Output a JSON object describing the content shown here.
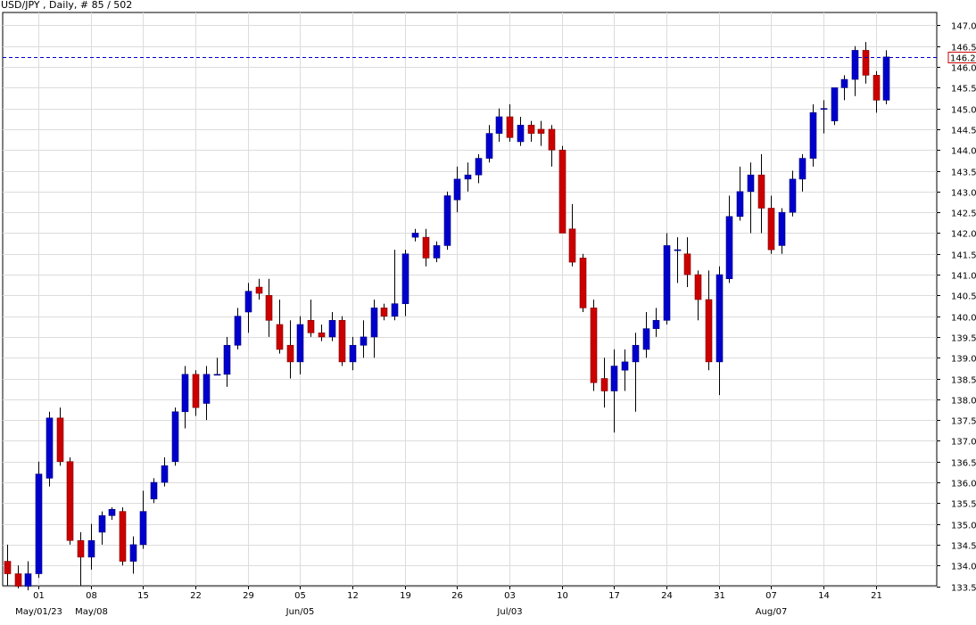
{
  "chart_data": {
    "type": "candlestick",
    "title": "USD/JPY , Daily, # 85 / 502",
    "symbol": "USD/JPY",
    "timeframe": "Daily",
    "current_price": 146.24,
    "current_price_label": "146.24",
    "ylim": [
      133.5,
      147.3
    ],
    "y_ticks": [
      "133.50",
      "134.00",
      "134.50",
      "135.00",
      "135.50",
      "136.00",
      "136.50",
      "137.00",
      "137.50",
      "138.00",
      "138.50",
      "139.00",
      "139.50",
      "140.00",
      "140.50",
      "141.00",
      "141.50",
      "142.00",
      "142.50",
      "143.00",
      "143.50",
      "144.00",
      "144.50",
      "145.00",
      "145.50",
      "146.00",
      "146.50",
      "147.00"
    ],
    "x_ticks": [
      {
        "index": 3,
        "label": "01"
      },
      {
        "index": 8,
        "label": "08"
      },
      {
        "index": 13,
        "label": "15"
      },
      {
        "index": 18,
        "label": "22"
      },
      {
        "index": 23,
        "label": "29"
      },
      {
        "index": 28,
        "label": "05"
      },
      {
        "index": 33,
        "label": "12"
      },
      {
        "index": 38,
        "label": "19"
      },
      {
        "index": 43,
        "label": "26"
      },
      {
        "index": 48,
        "label": "03"
      },
      {
        "index": 53,
        "label": "10"
      },
      {
        "index": 58,
        "label": "17"
      },
      {
        "index": 63,
        "label": "24"
      },
      {
        "index": 68,
        "label": "31"
      },
      {
        "index": 73,
        "label": "07"
      },
      {
        "index": 78,
        "label": "14"
      },
      {
        "index": 83,
        "label": "21"
      }
    ],
    "period_labels": [
      {
        "index": 3,
        "label": "May/01/23"
      },
      {
        "index": 8,
        "label": "May/08"
      },
      {
        "index": 28,
        "label": "Jun/05"
      },
      {
        "index": 48,
        "label": "Jul/03"
      },
      {
        "index": 73,
        "label": "Aug/07"
      }
    ],
    "grid": true,
    "up_color": "#0000cc",
    "down_color": "#cc0000",
    "price_line_color": "#0000cc",
    "price_label_border": "#cc0000",
    "candles": [
      {
        "o": 134.1,
        "h": 134.5,
        "l": 133.5,
        "c": 133.8
      },
      {
        "o": 133.8,
        "h": 134.0,
        "l": 133.45,
        "c": 133.5
      },
      {
        "o": 133.5,
        "h": 134.1,
        "l": 133.4,
        "c": 133.8
      },
      {
        "o": 133.8,
        "h": 136.5,
        "l": 133.7,
        "c": 136.2
      },
      {
        "o": 136.1,
        "h": 137.7,
        "l": 135.9,
        "c": 137.55
      },
      {
        "o": 137.55,
        "h": 137.8,
        "l": 136.4,
        "c": 136.5
      },
      {
        "o": 136.5,
        "h": 136.6,
        "l": 134.5,
        "c": 134.6
      },
      {
        "o": 134.6,
        "h": 134.8,
        "l": 133.5,
        "c": 134.2
      },
      {
        "o": 134.2,
        "h": 135.0,
        "l": 133.9,
        "c": 134.6
      },
      {
        "o": 134.8,
        "h": 135.3,
        "l": 134.5,
        "c": 135.2
      },
      {
        "o": 135.2,
        "h": 135.4,
        "l": 135.1,
        "c": 135.35
      },
      {
        "o": 135.3,
        "h": 135.4,
        "l": 134.0,
        "c": 134.1
      },
      {
        "o": 134.1,
        "h": 134.7,
        "l": 133.8,
        "c": 134.5
      },
      {
        "o": 134.5,
        "h": 135.8,
        "l": 134.4,
        "c": 135.3
      },
      {
        "o": 135.6,
        "h": 136.1,
        "l": 135.5,
        "c": 136.0
      },
      {
        "o": 136.0,
        "h": 136.6,
        "l": 135.9,
        "c": 136.4
      },
      {
        "o": 136.5,
        "h": 137.8,
        "l": 136.4,
        "c": 137.7
      },
      {
        "o": 137.7,
        "h": 138.8,
        "l": 137.3,
        "c": 138.6
      },
      {
        "o": 138.6,
        "h": 138.7,
        "l": 137.6,
        "c": 137.8
      },
      {
        "o": 137.9,
        "h": 138.8,
        "l": 137.5,
        "c": 138.6
      },
      {
        "o": 138.6,
        "h": 139.0,
        "l": 138.6,
        "c": 138.6
      },
      {
        "o": 138.6,
        "h": 139.5,
        "l": 138.3,
        "c": 139.3
      },
      {
        "o": 139.3,
        "h": 140.2,
        "l": 139.2,
        "c": 140.0
      },
      {
        "o": 140.1,
        "h": 140.8,
        "l": 139.6,
        "c": 140.6
      },
      {
        "o": 140.7,
        "h": 140.9,
        "l": 140.4,
        "c": 140.55
      },
      {
        "o": 140.5,
        "h": 140.9,
        "l": 139.5,
        "c": 139.9
      },
      {
        "o": 139.8,
        "h": 140.4,
        "l": 139.1,
        "c": 139.2
      },
      {
        "o": 139.3,
        "h": 139.9,
        "l": 138.5,
        "c": 138.9
      },
      {
        "o": 138.9,
        "h": 140.0,
        "l": 138.6,
        "c": 139.8
      },
      {
        "o": 139.9,
        "h": 140.4,
        "l": 139.5,
        "c": 139.6
      },
      {
        "o": 139.6,
        "h": 139.8,
        "l": 139.4,
        "c": 139.5
      },
      {
        "o": 139.5,
        "h": 140.1,
        "l": 139.4,
        "c": 139.9
      },
      {
        "o": 139.9,
        "h": 140.0,
        "l": 138.8,
        "c": 138.9
      },
      {
        "o": 138.9,
        "h": 139.5,
        "l": 138.7,
        "c": 139.3
      },
      {
        "o": 139.3,
        "h": 139.9,
        "l": 139.0,
        "c": 139.5
      },
      {
        "o": 139.5,
        "h": 140.4,
        "l": 139.0,
        "c": 140.2
      },
      {
        "o": 140.2,
        "h": 140.3,
        "l": 139.9,
        "c": 140.0
      },
      {
        "o": 140.0,
        "h": 141.6,
        "l": 139.9,
        "c": 140.3
      },
      {
        "o": 140.3,
        "h": 141.6,
        "l": 140.0,
        "c": 141.5
      },
      {
        "o": 141.9,
        "h": 142.1,
        "l": 141.8,
        "c": 142.0
      },
      {
        "o": 141.9,
        "h": 142.1,
        "l": 141.2,
        "c": 141.4
      },
      {
        "o": 141.4,
        "h": 141.8,
        "l": 141.3,
        "c": 141.7
      },
      {
        "o": 141.7,
        "h": 143.0,
        "l": 141.6,
        "c": 142.9
      },
      {
        "o": 142.8,
        "h": 143.6,
        "l": 142.5,
        "c": 143.3
      },
      {
        "o": 143.3,
        "h": 143.7,
        "l": 143.0,
        "c": 143.4
      },
      {
        "o": 143.4,
        "h": 143.9,
        "l": 143.2,
        "c": 143.8
      },
      {
        "o": 143.8,
        "h": 144.6,
        "l": 143.7,
        "c": 144.4
      },
      {
        "o": 144.4,
        "h": 145.0,
        "l": 144.2,
        "c": 144.8
      },
      {
        "o": 144.8,
        "h": 145.1,
        "l": 144.2,
        "c": 144.3
      },
      {
        "o": 144.2,
        "h": 144.8,
        "l": 144.1,
        "c": 144.6
      },
      {
        "o": 144.6,
        "h": 144.7,
        "l": 144.2,
        "c": 144.4
      },
      {
        "o": 144.5,
        "h": 144.7,
        "l": 144.1,
        "c": 144.4
      },
      {
        "o": 144.5,
        "h": 144.6,
        "l": 143.6,
        "c": 144.0
      },
      {
        "o": 144.0,
        "h": 144.1,
        "l": 142.0,
        "c": 142.0
      },
      {
        "o": 142.1,
        "h": 142.7,
        "l": 141.2,
        "c": 141.3
      },
      {
        "o": 141.4,
        "h": 141.5,
        "l": 140.1,
        "c": 140.2
      },
      {
        "o": 140.2,
        "h": 140.4,
        "l": 138.2,
        "c": 138.4
      },
      {
        "o": 138.5,
        "h": 139.0,
        "l": 137.8,
        "c": 138.2
      },
      {
        "o": 138.2,
        "h": 139.2,
        "l": 137.2,
        "c": 138.8
      },
      {
        "o": 138.7,
        "h": 139.2,
        "l": 138.2,
        "c": 138.9
      },
      {
        "o": 138.9,
        "h": 139.6,
        "l": 137.7,
        "c": 139.3
      },
      {
        "o": 139.2,
        "h": 140.1,
        "l": 139.0,
        "c": 139.7
      },
      {
        "o": 139.7,
        "h": 140.2,
        "l": 139.5,
        "c": 139.9
      },
      {
        "o": 139.9,
        "h": 142.0,
        "l": 139.8,
        "c": 141.7
      },
      {
        "o": 141.6,
        "h": 141.9,
        "l": 140.8,
        "c": 141.6
      },
      {
        "o": 141.5,
        "h": 141.9,
        "l": 140.7,
        "c": 141.0
      },
      {
        "o": 141.0,
        "h": 141.1,
        "l": 139.9,
        "c": 140.4
      },
      {
        "o": 140.4,
        "h": 141.1,
        "l": 138.7,
        "c": 138.9
      },
      {
        "o": 138.9,
        "h": 141.2,
        "l": 138.1,
        "c": 141.0
      },
      {
        "o": 140.9,
        "h": 142.9,
        "l": 140.8,
        "c": 142.4
      },
      {
        "o": 142.4,
        "h": 143.6,
        "l": 142.3,
        "c": 143.0
      },
      {
        "o": 143.0,
        "h": 143.7,
        "l": 142.0,
        "c": 143.4
      },
      {
        "o": 143.4,
        "h": 143.9,
        "l": 142.0,
        "c": 142.6
      },
      {
        "o": 142.6,
        "h": 142.9,
        "l": 141.5,
        "c": 141.6
      },
      {
        "o": 141.7,
        "h": 142.6,
        "l": 141.5,
        "c": 142.5
      },
      {
        "o": 142.5,
        "h": 143.5,
        "l": 142.4,
        "c": 143.3
      },
      {
        "o": 143.3,
        "h": 143.9,
        "l": 143.0,
        "c": 143.8
      },
      {
        "o": 143.8,
        "h": 145.1,
        "l": 143.6,
        "c": 144.9
      },
      {
        "o": 145.0,
        "h": 145.2,
        "l": 144.4,
        "c": 145.0
      },
      {
        "o": 144.7,
        "h": 145.5,
        "l": 144.6,
        "c": 145.5
      },
      {
        "o": 145.5,
        "h": 145.8,
        "l": 145.2,
        "c": 145.7
      },
      {
        "o": 145.7,
        "h": 146.5,
        "l": 145.3,
        "c": 146.4
      },
      {
        "o": 146.4,
        "h": 146.6,
        "l": 145.6,
        "c": 145.8
      },
      {
        "o": 145.8,
        "h": 145.9,
        "l": 144.9,
        "c": 145.2
      },
      {
        "o": 145.2,
        "h": 146.4,
        "l": 145.1,
        "c": 146.24
      }
    ]
  }
}
